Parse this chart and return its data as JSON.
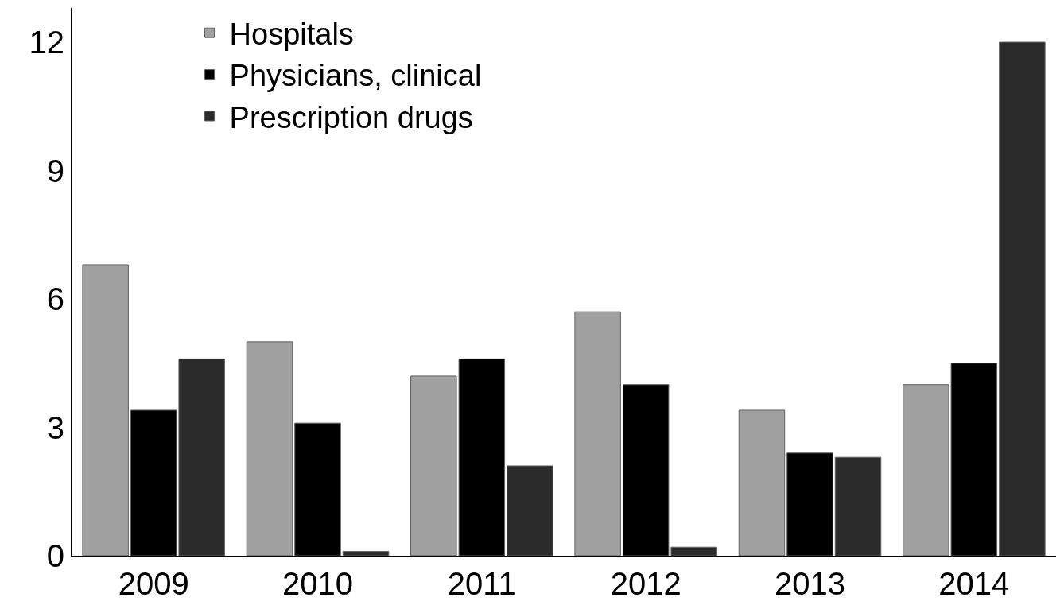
{
  "chart_data": {
    "type": "bar",
    "categories": [
      "2009",
      "2010",
      "2011",
      "2012",
      "2013",
      "2014"
    ],
    "series": [
      {
        "name": "Hospitals",
        "color": "#a0a0a0",
        "values": [
          6.8,
          5.0,
          4.2,
          5.7,
          3.4,
          4.0
        ]
      },
      {
        "name": "Physicians, clinical",
        "color": "#000000",
        "values": [
          3.4,
          3.1,
          4.6,
          4.0,
          2.4,
          4.5
        ]
      },
      {
        "name": "Prescription drugs",
        "color": "#2b2b2b",
        "values": [
          4.6,
          0.1,
          2.1,
          0.2,
          2.3,
          12.0
        ]
      }
    ],
    "ylim": [
      0,
      12.8
    ],
    "yticks": [
      0,
      3,
      6,
      9,
      12
    ],
    "legend": "top left"
  }
}
